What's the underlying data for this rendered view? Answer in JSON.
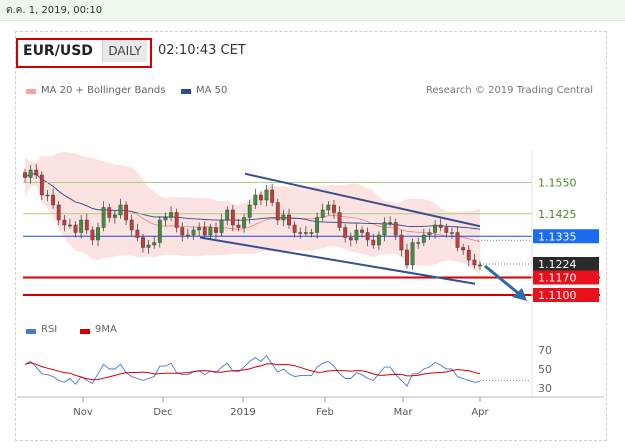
{
  "header": {
    "date_text": "ต.ค. 1, 2019, 00:10",
    "pair": "EUR/USD",
    "timeframe": "DAILY",
    "time": "02:10:43 CET"
  },
  "legend": {
    "bollinger_label": "MA 20 + Bollinger Bands",
    "ma50_label": "MA 50",
    "credit": "Research © 2019 Trading Central",
    "rsi_label": "RSI",
    "rsi_ma_label": "9MA"
  },
  "colors": {
    "bollinger": "#f08080",
    "ma50": "#2b4f8c",
    "rsi": "#4b77d1",
    "rsi_ma": "#d40000",
    "resistance_line": "#a6d28a",
    "support_line": "#d40000",
    "current_line": "#1a4fd6",
    "channel": "#34508e"
  },
  "chart_data": [
    {
      "type": "candlestick",
      "title": "EUR/USD",
      "x_tick_labels": [
        "Nov",
        "Dec",
        "2019",
        "Feb",
        "Mar",
        "Apr"
      ],
      "ylim": [
        1.108,
        1.168
      ],
      "close": [
        1.157,
        1.16,
        1.158,
        1.15,
        1.15,
        1.146,
        1.14,
        1.138,
        1.138,
        1.135,
        1.14,
        1.136,
        1.132,
        1.137,
        1.145,
        1.141,
        1.142,
        1.146,
        1.14,
        1.136,
        1.133,
        1.129,
        1.13,
        1.131,
        1.14,
        1.141,
        1.143,
        1.137,
        1.134,
        1.134,
        1.136,
        1.137,
        1.134,
        1.137,
        1.135,
        1.14,
        1.144,
        1.138,
        1.137,
        1.141,
        1.146,
        1.15,
        1.148,
        1.152,
        1.147,
        1.14,
        1.142,
        1.138,
        1.135,
        1.135,
        1.135,
        1.135,
        1.141,
        1.144,
        1.146,
        1.143,
        1.137,
        1.133,
        1.132,
        1.136,
        1.135,
        1.132,
        1.13,
        1.134,
        1.139,
        1.139,
        1.134,
        1.128,
        1.122,
        1.131,
        1.131,
        1.134,
        1.135,
        1.138,
        1.137,
        1.135,
        1.135,
        1.129,
        1.128,
        1.124,
        1.122,
        1.122
      ],
      "levels": [
        {
          "value": 1.155,
          "label": "1.1550",
          "kind": "resistance"
        },
        {
          "value": 1.1425,
          "label": "1.1425",
          "kind": "resistance"
        },
        {
          "value": 1.1335,
          "label": "1.1335",
          "kind": "current"
        },
        {
          "value": 1.1224,
          "label": "1.1224",
          "kind": "last"
        },
        {
          "value": 1.117,
          "label": "1.1170",
          "kind": "support"
        },
        {
          "value": 1.11,
          "label": "1.1100",
          "kind": "target"
        }
      ],
      "series": [
        {
          "name": "MA 20 + Bollinger Bands"
        },
        {
          "name": "MA 50"
        }
      ]
    },
    {
      "type": "line",
      "title": "",
      "y_tick_labels": [
        "70",
        "50",
        "30"
      ],
      "ylim": [
        25,
        75
      ],
      "series": [
        {
          "name": "RSI",
          "values": [
            55,
            58,
            52,
            45,
            44,
            42,
            38,
            36,
            40,
            34,
            42,
            38,
            35,
            45,
            55,
            50,
            50,
            55,
            46,
            42,
            40,
            38,
            40,
            42,
            53,
            53,
            56,
            46,
            44,
            44,
            47,
            48,
            44,
            48,
            46,
            52,
            56,
            48,
            47,
            52,
            58,
            62,
            58,
            64,
            55,
            47,
            50,
            45,
            42,
            43,
            43,
            43,
            52,
            56,
            58,
            53,
            45,
            40,
            40,
            46,
            44,
            40,
            38,
            45,
            52,
            52,
            44,
            38,
            32,
            45,
            45,
            50,
            52,
            57,
            54,
            50,
            50,
            42,
            40,
            38,
            36,
            37
          ]
        },
        {
          "name": "9MA"
        }
      ]
    }
  ]
}
